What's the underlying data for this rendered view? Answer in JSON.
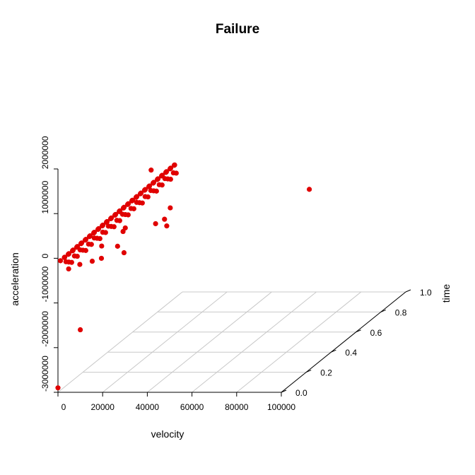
{
  "chart_data": {
    "type": "scatter",
    "projection": "3d",
    "title": "Failure",
    "xlabel": "velocity",
    "ylabel": "time",
    "zlabel": "acceleration",
    "xlim": [
      0,
      100000
    ],
    "ylim": [
      0,
      1
    ],
    "zlim": [
      -3000000,
      2000000
    ],
    "x_ticks": [
      "0",
      "20000",
      "40000",
      "60000",
      "80000",
      "100000"
    ],
    "y_ticks": [
      "0.0",
      "0.2",
      "0.4",
      "0.6",
      "0.8",
      "1.0"
    ],
    "z_ticks": [
      "-3000000",
      "-2000000",
      "-1000000",
      "0",
      "1000000",
      "2000000"
    ],
    "grid": true,
    "color": "#e00000",
    "points": [
      {
        "x": 0,
        "y": 0,
        "z": -2900000
      },
      {
        "x": 10000,
        "y": 0,
        "z": -1600000
      },
      {
        "x": 2000,
        "y": 0.05,
        "z": -350000
      },
      {
        "x": 7000,
        "y": 0.05,
        "z": -250000
      },
      {
        "x": 12000,
        "y": 0.06,
        "z": -200000
      },
      {
        "x": 15000,
        "y": 0.08,
        "z": -180000
      },
      {
        "x": 24000,
        "y": 0.1,
        "z": -100000
      },
      {
        "x": 78000,
        "y": 0.62,
        "z": 150000
      },
      {
        "x": 25000,
        "y": 0.3,
        "z": 1300000
      },
      {
        "x": 18000,
        "y": 0.2,
        "z": 150000
      },
      {
        "x": 27000,
        "y": 0.3,
        "z": 100000
      },
      {
        "x": 20000,
        "y": 0.12,
        "z": 0
      },
      {
        "x": 31000,
        "y": 0.3,
        "z": 200000
      },
      {
        "x": 28000,
        "y": 0.4,
        "z": 230000
      },
      {
        "x": 32000,
        "y": 0.3,
        "z": 50000
      },
      {
        "x": 14000,
        "y": 0.1,
        "z": 50000
      },
      {
        "x": 19000,
        "y": 0.2,
        "z": 230000
      }
    ],
    "ridge_points": 80
  }
}
